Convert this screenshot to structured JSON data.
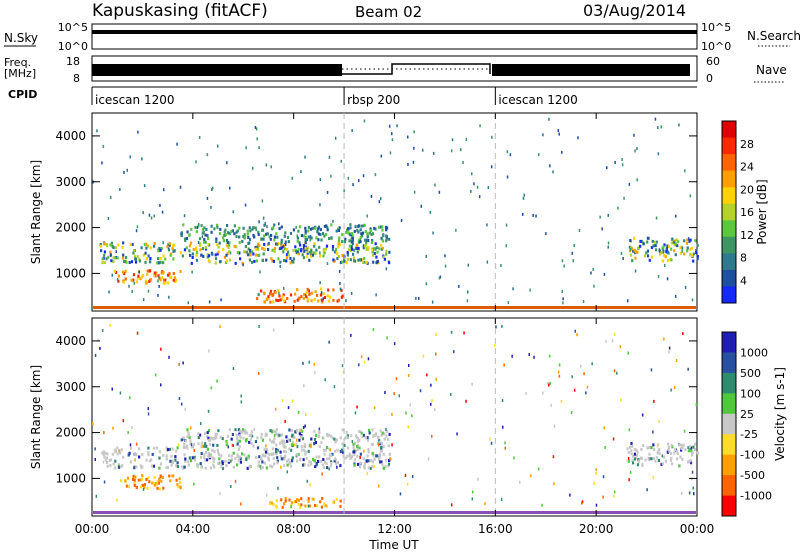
{
  "header": {
    "station": "Kapuskasing (fitACF)",
    "beam": "Beam 02",
    "date": "03/Aug/2014"
  },
  "top_panels": {
    "nsky_label": "N.Sky",
    "nsky_ticks": [
      "10^5",
      "10^0"
    ],
    "nsearch_label": "N.Search",
    "nsearch_ticks": [
      "10^5",
      "10^0"
    ],
    "freq_label_1": "Freq.",
    "freq_label_2": "[MHz]",
    "freq_ticks": [
      "18",
      "8"
    ],
    "nave_label": "Nave",
    "nave_ticks": [
      "60",
      "0"
    ],
    "cpid_label": "CPID",
    "cpid_modes": [
      {
        "name": "icescan 1200",
        "start_hour": 0,
        "end_hour": 10
      },
      {
        "name": "rbsp 200",
        "start_hour": 10,
        "end_hour": 16
      },
      {
        "name": "icescan 1200",
        "start_hour": 16,
        "end_hour": 24
      }
    ]
  },
  "chart_data": [
    {
      "type": "heatmap",
      "title": "Power",
      "xlabel": "Time UT",
      "ylabel": "Slant Range [km]",
      "xlim": [
        0,
        24
      ],
      "ylim": [
        180,
        4500
      ],
      "x_ticks": [
        "00:00",
        "04:00",
        "08:00",
        "12:00",
        "16:00",
        "20:00",
        "00:00"
      ],
      "y_ticks": [
        "1000",
        "2000",
        "3000",
        "4000"
      ],
      "colorbar": {
        "label": "Power [dB]",
        "ticks": [
          "28",
          "24",
          "20",
          "16",
          "12",
          "8",
          "4"
        ],
        "colors": [
          "#1428ff",
          "#1e50a0",
          "#2d7a8c",
          "#3c9664",
          "#5ac83c",
          "#b4d228",
          "#ffd200",
          "#ffa000",
          "#ff6400",
          "#ff2800",
          "#e10000"
        ]
      },
      "echo_regions": [
        {
          "t0": 0.3,
          "t1": 11.8,
          "r0": 1250,
          "r1": 1700,
          "level": "mixed"
        },
        {
          "t0": 3.5,
          "t1": 11.8,
          "r0": 1700,
          "r1": 2100,
          "level": "moderate"
        },
        {
          "t0": 0.8,
          "t1": 3.5,
          "r0": 800,
          "r1": 1100,
          "level": "strong"
        },
        {
          "t0": 6.5,
          "t1": 10.0,
          "r0": 400,
          "r1": 700,
          "level": "strong"
        },
        {
          "t0": 21.2,
          "t1": 24.0,
          "r0": 1300,
          "r1": 1800,
          "level": "mixed"
        }
      ]
    },
    {
      "type": "heatmap",
      "title": "Velocity",
      "xlabel": "Time UT",
      "ylabel": "Slant Range [km]",
      "xlim": [
        0,
        24
      ],
      "ylim": [
        180,
        4500
      ],
      "x_ticks": [
        "00:00",
        "04:00",
        "08:00",
        "12:00",
        "16:00",
        "20:00",
        "00:00"
      ],
      "y_ticks": [
        "1000",
        "2000",
        "3000",
        "4000"
      ],
      "colorbar": {
        "label": "Velocity [m s-1]",
        "ticks": [
          "1000",
          "500",
          "100",
          "25",
          "-25",
          "-100",
          "-500",
          "-1000"
        ],
        "colors": [
          "#1e1eb4",
          "#2850a0",
          "#2d8c6e",
          "#50c83c",
          "#c8c8c8",
          "#ffdc28",
          "#ffa000",
          "#ff6400",
          "#ff0000"
        ]
      },
      "echo_regions": [
        {
          "t0": 0.3,
          "t1": 11.8,
          "r0": 1250,
          "r1": 1700,
          "level": "ground-scatter"
        },
        {
          "t0": 3.5,
          "t1": 11.8,
          "r0": 1700,
          "r1": 2100,
          "level": "ground-scatter"
        },
        {
          "t0": 1.0,
          "t1": 3.5,
          "r0": 800,
          "r1": 1100,
          "level": "negative"
        },
        {
          "t0": 7.0,
          "t1": 10.0,
          "r0": 400,
          "r1": 600,
          "level": "negative"
        },
        {
          "t0": 21.2,
          "t1": 24.0,
          "r0": 1300,
          "r1": 1800,
          "level": "ground-scatter"
        }
      ]
    }
  ]
}
